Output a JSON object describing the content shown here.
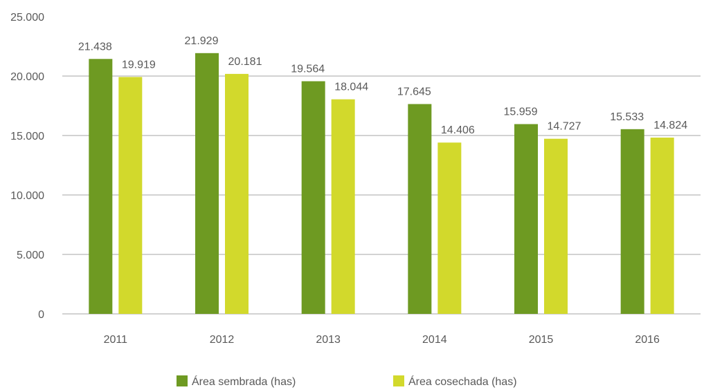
{
  "chart_data": {
    "type": "bar",
    "title": "",
    "xlabel": "",
    "ylabel": "",
    "ylim": [
      0,
      25000
    ],
    "y_ticks": [
      0,
      5000,
      10000,
      15000,
      20000,
      25000
    ],
    "y_tick_labels": [
      "0",
      "5.000",
      "10.000",
      "15.000",
      "20.000",
      "25.000"
    ],
    "grid": true,
    "legend_position": "bottom",
    "categories": [
      "2011",
      "2012",
      "2013",
      "2014",
      "2015",
      "2016"
    ],
    "series": [
      {
        "name": "Área sembrada (has)",
        "color": "#6e9a22",
        "values": [
          21438,
          21929,
          19564,
          17645,
          15959,
          15533
        ],
        "labels": [
          "21.438",
          "21.929",
          "19.564",
          "17.645",
          "15.959",
          "15.533"
        ]
      },
      {
        "name": "Área cosechada (has)",
        "color": "#d2d92c",
        "values": [
          19919,
          20181,
          18044,
          14406,
          14727,
          14824
        ],
        "labels": [
          "19.919",
          "20.181",
          "18.044",
          "14.406",
          "14.727",
          "14.824"
        ]
      }
    ]
  }
}
